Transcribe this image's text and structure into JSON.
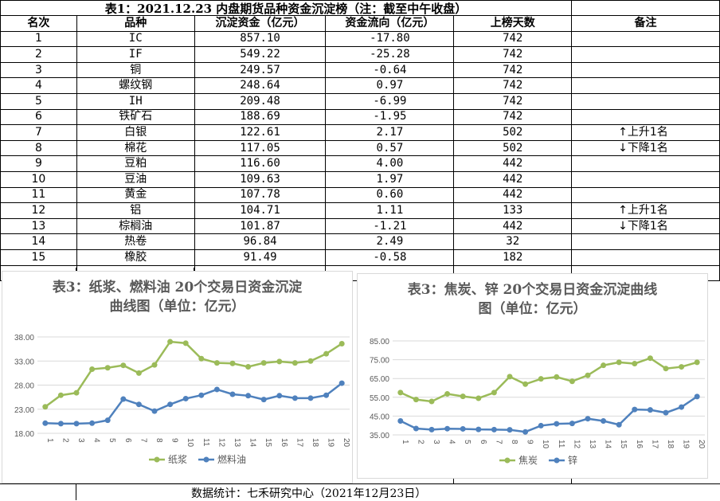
{
  "table": {
    "title": "表1：2021.12.23 内盘期货品种资金沉淀榜（注：截至中午收盘）",
    "headers": [
      "名次",
      "品种",
      "沉淀资金（亿元）",
      "资金流向（亿元）",
      "上榜天数",
      "备注"
    ],
    "rows": [
      {
        "rank": "1",
        "name": "IC",
        "capital": "857.10",
        "flow": "-17.80",
        "days": "742",
        "note": ""
      },
      {
        "rank": "2",
        "name": "IF",
        "capital": "549.22",
        "flow": "-25.28",
        "days": "742",
        "note": ""
      },
      {
        "rank": "3",
        "name": "铜",
        "capital": "249.57",
        "flow": "-0.64",
        "days": "742",
        "note": ""
      },
      {
        "rank": "4",
        "name": "螺纹钢",
        "capital": "248.64",
        "flow": "0.97",
        "days": "742",
        "note": ""
      },
      {
        "rank": "5",
        "name": "IH",
        "capital": "209.48",
        "flow": "-6.99",
        "days": "742",
        "note": ""
      },
      {
        "rank": "6",
        "name": "铁矿石",
        "capital": "188.69",
        "flow": "-1.95",
        "days": "742",
        "note": ""
      },
      {
        "rank": "7",
        "name": "白银",
        "capital": "122.61",
        "flow": "2.17",
        "days": "502",
        "note": "↑上升1名"
      },
      {
        "rank": "8",
        "name": "棉花",
        "capital": "117.05",
        "flow": "0.57",
        "days": "502",
        "note": "↓下降1名"
      },
      {
        "rank": "9",
        "name": "豆粕",
        "capital": "116.60",
        "flow": "4.00",
        "days": "442",
        "note": ""
      },
      {
        "rank": "10",
        "name": "豆油",
        "capital": "109.63",
        "flow": "1.97",
        "days": "442",
        "note": ""
      },
      {
        "rank": "11",
        "name": "黄金",
        "capital": "107.78",
        "flow": "0.60",
        "days": "442",
        "note": ""
      },
      {
        "rank": "12",
        "name": "铝",
        "capital": "104.71",
        "flow": "1.11",
        "days": "133",
        "note": "↑上升1名"
      },
      {
        "rank": "13",
        "name": "棕榈油",
        "capital": "101.87",
        "flow": "-1.21",
        "days": "442",
        "note": "↓下降1名"
      },
      {
        "rank": "14",
        "name": "热卷",
        "capital": "96.84",
        "flow": "2.49",
        "days": "32",
        "note": ""
      },
      {
        "rank": "15",
        "name": "橡胶",
        "capital": "91.49",
        "flow": "-0.58",
        "days": "182",
        "note": ""
      }
    ]
  },
  "footer": {
    "text": "数据统计：七禾研究中心（2021年12月23日）"
  },
  "colors": {
    "green": "#9BBB59",
    "blue": "#4F81BD",
    "grid": "#d9d9d9",
    "axis_text": "#595959"
  },
  "chart_data": [
    {
      "type": "line",
      "title_line1": "表3：纸浆、燃料油 20个交易日资金沉淀",
      "title_line2": "曲线图（单位：亿元）",
      "x": [
        "1",
        "2",
        "3",
        "4",
        "5",
        "6",
        "7",
        "8",
        "9",
        "10",
        "11",
        "12",
        "13",
        "14",
        "15",
        "16",
        "17",
        "18",
        "19",
        "20"
      ],
      "y_ticks": [
        "38.00",
        "33.00",
        "28.00",
        "23.00",
        "18.00"
      ],
      "ylim": [
        18,
        38
      ],
      "grid": true,
      "legend": "bottom",
      "series": [
        {
          "name": "纸浆",
          "color": "#9BBB59",
          "values": [
            23.5,
            25.9,
            26.4,
            31.3,
            31.6,
            32.1,
            30.5,
            32.2,
            37.0,
            36.7,
            33.5,
            32.6,
            32.5,
            31.8,
            32.6,
            32.9,
            32.6,
            33.0,
            34.5,
            36.6
          ]
        },
        {
          "name": "燃料油",
          "color": "#4F81BD",
          "values": [
            20.1,
            20.0,
            20.0,
            20.1,
            20.7,
            25.1,
            24.0,
            22.6,
            24.0,
            25.2,
            25.9,
            27.1,
            26.1,
            25.8,
            25.0,
            25.8,
            25.3,
            25.3,
            25.9,
            28.4
          ]
        }
      ]
    },
    {
      "type": "line",
      "title_line1": "表3：焦炭、锌 20个交易日资金沉淀曲线",
      "title_line2": "图（单位：亿元）",
      "x": [
        "1",
        "2",
        "3",
        "4",
        "5",
        "6",
        "7",
        "8",
        "9",
        "10",
        "11",
        "12",
        "13",
        "14",
        "15",
        "16",
        "17",
        "18",
        "19",
        "20"
      ],
      "y_ticks": [
        "85.00",
        "75.00",
        "65.00",
        "55.00",
        "45.00",
        "35.00"
      ],
      "ylim": [
        35,
        85
      ],
      "grid": true,
      "legend": "bottom",
      "series": [
        {
          "name": "焦炭",
          "color": "#9BBB59",
          "values": [
            57.5,
            53.8,
            52.8,
            56.8,
            55.5,
            54.5,
            57.5,
            66.0,
            62.0,
            64.8,
            65.8,
            63.5,
            66.7,
            72.0,
            73.6,
            72.9,
            75.8,
            70.3,
            71.2,
            73.6
          ]
        },
        {
          "name": "锌",
          "color": "#4F81BD",
          "values": [
            42.4,
            38.4,
            37.8,
            38.3,
            38.2,
            37.9,
            37.8,
            37.7,
            36.6,
            39.9,
            40.9,
            41.1,
            43.6,
            42.4,
            40.4,
            48.5,
            48.3,
            46.8,
            49.8,
            55.4
          ]
        }
      ]
    }
  ]
}
